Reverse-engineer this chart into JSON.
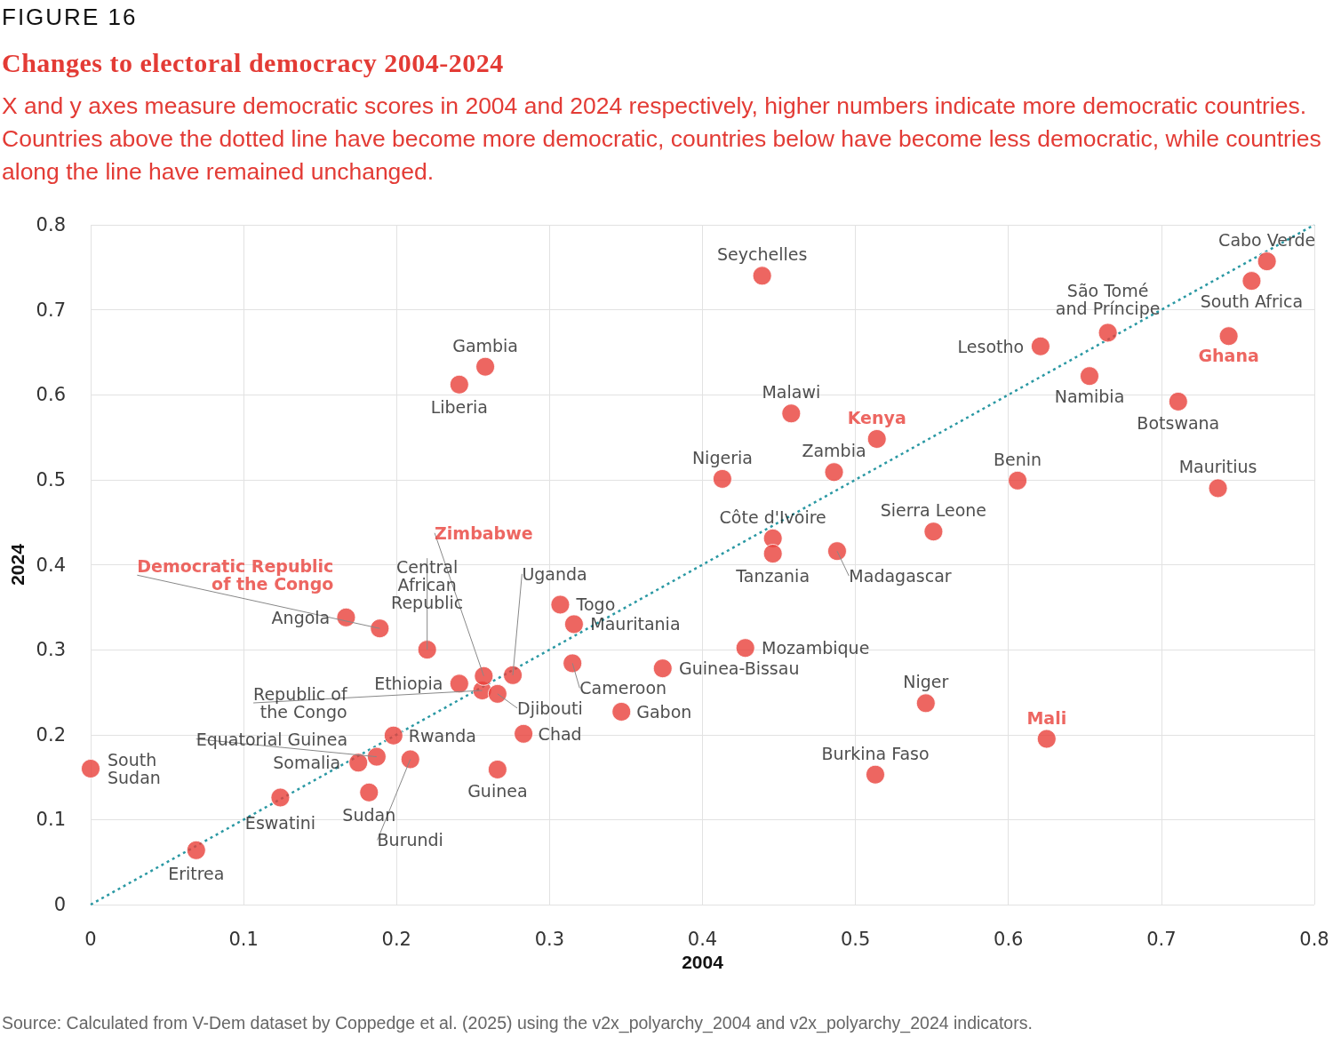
{
  "chart_data": {
    "type": "scatter",
    "title": "Changes to electoral democracy 2004-2024",
    "subtitle": "X and y axes measure democratic scores in 2004 and 2024 respectively, higher numbers indicate more democratic countries. Countries above the dotted line have become more democratic, countries below have become less democratic, while countries along the line have remained unchanged.",
    "xlabel": "2004",
    "ylabel": "2024",
    "xlim": [
      0,
      0.8
    ],
    "ylim": [
      0,
      0.8
    ],
    "xticks": [
      0,
      0.1,
      0.2,
      0.3,
      0.4,
      0.5,
      0.6,
      0.7,
      0.8
    ],
    "yticks": [
      0,
      0.1,
      0.2,
      0.3,
      0.4,
      0.5,
      0.6,
      0.7,
      0.8
    ],
    "grid": true,
    "marker": "circle",
    "series": [
      {
        "type": "scatter",
        "color": "#e8403a",
        "x": [
          0,
          0.069,
          0.124,
          0.175,
          0.182,
          0.187,
          0.198,
          0.209,
          0.167,
          0.22,
          0.241,
          0.256,
          0.266,
          0.276,
          0.266,
          0.283,
          0.307,
          0.316,
          0.315,
          0.347,
          0.374,
          0.428,
          0.241,
          0.258,
          0.439,
          0.458,
          0.413,
          0.486,
          0.446,
          0.446,
          0.488,
          0.551,
          0.513,
          0.546,
          0.606,
          0.621,
          0.653,
          0.665,
          0.711,
          0.737,
          0.759,
          0.769
        ],
        "values": [
          0.16,
          0.064,
          0.126,
          0.167,
          0.132,
          0.174,
          0.199,
          0.171,
          0.338,
          0.3,
          0.26,
          0.252,
          0.248,
          0.27,
          0.159,
          0.201,
          0.353,
          0.33,
          0.284,
          0.227,
          0.278,
          0.302,
          0.612,
          0.633,
          0.74,
          0.578,
          0.501,
          0.509,
          0.431,
          0.413,
          0.416,
          0.439,
          0.153,
          0.237,
          0.499,
          0.657,
          0.622,
          0.673,
          0.592,
          0.49,
          0.734,
          0.757
        ]
      },
      {
        "type": "scatter",
        "color": "#e8403a",
        "x": [
          0.189,
          0.257,
          0.514,
          0.625,
          0.744
        ],
        "values": [
          0.325,
          0.269,
          0.548,
          0.195,
          0.669
        ]
      },
      {
        "type": "line",
        "color": "#2a98a3",
        "line_style": "dotted",
        "marker": "none",
        "x": [
          0,
          0.8
        ],
        "values": [
          0,
          0.8
        ]
      }
    ],
    "annotations": [
      "FIGURE 16",
      {
        "text": "South\nSudan",
        "x": 0,
        "y": 0.16
      },
      {
        "text": "Eritrea",
        "x": 0.069,
        "y": 0.064
      },
      {
        "text": "Eswatini",
        "x": 0.124,
        "y": 0.126
      },
      {
        "text": "Somalia",
        "x": 0.175,
        "y": 0.167
      },
      {
        "text": "Sudan",
        "x": 0.182,
        "y": 0.132
      },
      {
        "text": "Equatorial Guinea",
        "x": 0.187,
        "y": 0.174
      },
      {
        "text": "Rwanda",
        "x": 0.198,
        "y": 0.199
      },
      {
        "text": "Burundi",
        "x": 0.209,
        "y": 0.171
      },
      {
        "text": "Angola",
        "x": 0.167,
        "y": 0.338
      },
      {
        "text": "Democratic Republic\nof the Congo",
        "x": 0.189,
        "y": 0.325
      },
      {
        "text": "Central\nAfrican\nRepublic",
        "x": 0.22,
        "y": 0.3
      },
      {
        "text": "Ethiopia",
        "x": 0.241,
        "y": 0.26
      },
      {
        "text": "Zimbabwe",
        "x": 0.257,
        "y": 0.269
      },
      {
        "text": "Republic of\nthe Congo",
        "x": 0.256,
        "y": 0.252
      },
      {
        "text": "Djibouti",
        "x": 0.266,
        "y": 0.248
      },
      {
        "text": "Uganda",
        "x": 0.276,
        "y": 0.27
      },
      {
        "text": "Guinea",
        "x": 0.266,
        "y": 0.159
      },
      {
        "text": "Chad",
        "x": 0.283,
        "y": 0.201
      },
      {
        "text": "Togo",
        "x": 0.307,
        "y": 0.353
      },
      {
        "text": "Mauritania",
        "x": 0.316,
        "y": 0.33
      },
      {
        "text": "Cameroon",
        "x": 0.315,
        "y": 0.284
      },
      {
        "text": "Gabon",
        "x": 0.347,
        "y": 0.227
      },
      {
        "text": "Guinea-Bissau",
        "x": 0.374,
        "y": 0.278
      },
      {
        "text": "Mozambique",
        "x": 0.428,
        "y": 0.302
      },
      {
        "text": "Liberia",
        "x": 0.241,
        "y": 0.612
      },
      {
        "text": "Gambia",
        "x": 0.258,
        "y": 0.633
      },
      {
        "text": "Seychelles",
        "x": 0.439,
        "y": 0.74
      },
      {
        "text": "Malawi",
        "x": 0.458,
        "y": 0.578
      },
      {
        "text": "Nigeria",
        "x": 0.413,
        "y": 0.501
      },
      {
        "text": "Zambia",
        "x": 0.486,
        "y": 0.509
      },
      {
        "text": "Kenya",
        "x": 0.514,
        "y": 0.548
      },
      {
        "text": "Côte d'Ivoire",
        "x": 0.446,
        "y": 0.431
      },
      {
        "text": "Tanzania",
        "x": 0.446,
        "y": 0.413
      },
      {
        "text": "Madagascar",
        "x": 0.488,
        "y": 0.416
      },
      {
        "text": "Sierra Leone",
        "x": 0.551,
        "y": 0.439
      },
      {
        "text": "Burkina Faso",
        "x": 0.513,
        "y": 0.153
      },
      {
        "text": "Niger",
        "x": 0.546,
        "y": 0.237
      },
      {
        "text": "Mali",
        "x": 0.625,
        "y": 0.195
      },
      {
        "text": "Benin",
        "x": 0.606,
        "y": 0.499
      },
      {
        "text": "Lesotho",
        "x": 0.621,
        "y": 0.657
      },
      {
        "text": "Namibia",
        "x": 0.653,
        "y": 0.622
      },
      {
        "text": "São Tomé\nand Príncipe",
        "x": 0.665,
        "y": 0.673
      },
      {
        "text": "Botswana",
        "x": 0.711,
        "y": 0.592
      },
      {
        "text": "Mauritius",
        "x": 0.737,
        "y": 0.49
      },
      {
        "text": "Ghana",
        "x": 0.744,
        "y": 0.669
      },
      {
        "text": "South Africa",
        "x": 0.759,
        "y": 0.734
      },
      {
        "text": "Cabo Verde",
        "x": 0.769,
        "y": 0.757
      },
      "Source: Calculated from V-Dem dataset by Coppedge et al. (2025) using the v2x_polyarchy_2004 and v2x_polyarchy_2024 indicators."
    ]
  }
}
